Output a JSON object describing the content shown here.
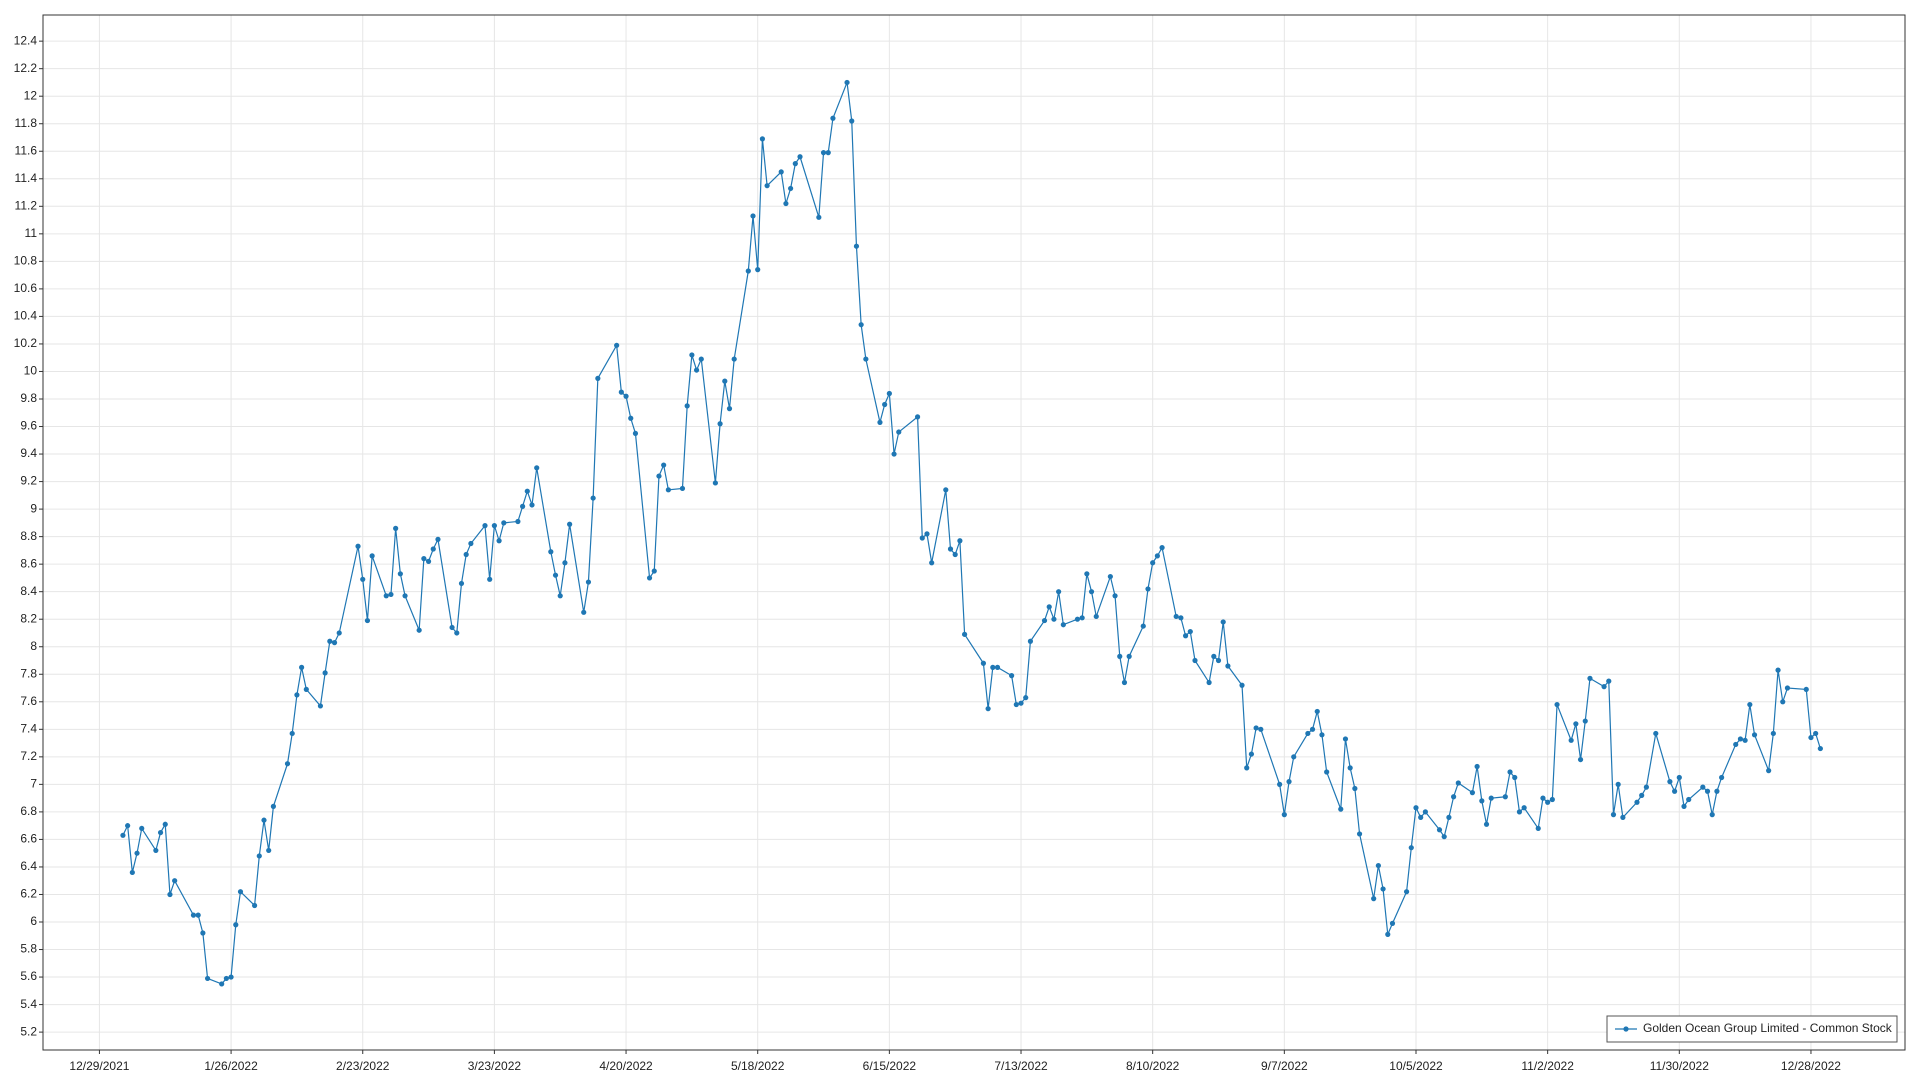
{
  "chart_data": {
    "type": "line",
    "x": [
      "1/3/2022",
      "1/4/2022",
      "1/5/2022",
      "1/6/2022",
      "1/7/2022",
      "1/10/2022",
      "1/11/2022",
      "1/12/2022",
      "1/13/2022",
      "1/14/2022",
      "1/18/2022",
      "1/19/2022",
      "1/20/2022",
      "1/21/2022",
      "1/24/2022",
      "1/25/2022",
      "1/26/2022",
      "1/27/2022",
      "1/28/2022",
      "1/31/2022",
      "2/1/2022",
      "2/2/2022",
      "2/3/2022",
      "2/4/2022",
      "2/7/2022",
      "2/8/2022",
      "2/9/2022",
      "2/10/2022",
      "2/11/2022",
      "2/14/2022",
      "2/15/2022",
      "2/16/2022",
      "2/17/2022",
      "2/18/2022",
      "2/22/2022",
      "2/23/2022",
      "2/24/2022",
      "2/25/2022",
      "2/28/2022",
      "3/1/2022",
      "3/2/2022",
      "3/3/2022",
      "3/4/2022",
      "3/7/2022",
      "3/8/2022",
      "3/9/2022",
      "3/10/2022",
      "3/11/2022",
      "3/14/2022",
      "3/15/2022",
      "3/16/2022",
      "3/17/2022",
      "3/18/2022",
      "3/21/2022",
      "3/22/2022",
      "3/23/2022",
      "3/24/2022",
      "3/25/2022",
      "3/28/2022",
      "3/29/2022",
      "3/30/2022",
      "3/31/2022",
      "4/1/2022",
      "4/4/2022",
      "4/5/2022",
      "4/6/2022",
      "4/7/2022",
      "4/8/2022",
      "4/11/2022",
      "4/12/2022",
      "4/13/2022",
      "4/14/2022",
      "4/18/2022",
      "4/19/2022",
      "4/20/2022",
      "4/21/2022",
      "4/22/2022",
      "4/25/2022",
      "4/26/2022",
      "4/27/2022",
      "4/28/2022",
      "4/29/2022",
      "5/2/2022",
      "5/3/2022",
      "5/4/2022",
      "5/5/2022",
      "5/6/2022",
      "5/9/2022",
      "5/10/2022",
      "5/11/2022",
      "5/12/2022",
      "5/13/2022",
      "5/16/2022",
      "5/17/2022",
      "5/18/2022",
      "5/19/2022",
      "5/20/2022",
      "5/23/2022",
      "5/24/2022",
      "5/25/2022",
      "5/26/2022",
      "5/27/2022",
      "5/31/2022",
      "6/1/2022",
      "6/2/2022",
      "6/3/2022",
      "6/6/2022",
      "6/7/2022",
      "6/8/2022",
      "6/9/2022",
      "6/10/2022",
      "6/13/2022",
      "6/14/2022",
      "6/15/2022",
      "6/16/2022",
      "6/17/2022",
      "6/21/2022",
      "6/22/2022",
      "6/23/2022",
      "6/24/2022",
      "6/27/2022",
      "6/28/2022",
      "6/29/2022",
      "6/30/2022",
      "7/1/2022",
      "7/5/2022",
      "7/6/2022",
      "7/7/2022",
      "7/8/2022",
      "7/11/2022",
      "7/12/2022",
      "7/13/2022",
      "7/14/2022",
      "7/15/2022",
      "7/18/2022",
      "7/19/2022",
      "7/20/2022",
      "7/21/2022",
      "7/22/2022",
      "7/25/2022",
      "7/26/2022",
      "7/27/2022",
      "7/28/2022",
      "7/29/2022",
      "8/1/2022",
      "8/2/2022",
      "8/3/2022",
      "8/4/2022",
      "8/5/2022",
      "8/8/2022",
      "8/9/2022",
      "8/10/2022",
      "8/11/2022",
      "8/12/2022",
      "8/15/2022",
      "8/16/2022",
      "8/17/2022",
      "8/18/2022",
      "8/19/2022",
      "8/22/2022",
      "8/23/2022",
      "8/24/2022",
      "8/25/2022",
      "8/26/2022",
      "8/29/2022",
      "8/30/2022",
      "8/31/2022",
      "9/1/2022",
      "9/2/2022",
      "9/6/2022",
      "9/7/2022",
      "9/8/2022",
      "9/9/2022",
      "9/12/2022",
      "9/13/2022",
      "9/14/2022",
      "9/15/2022",
      "9/16/2022",
      "9/19/2022",
      "9/20/2022",
      "9/21/2022",
      "9/22/2022",
      "9/23/2022",
      "9/26/2022",
      "9/27/2022",
      "9/28/2022",
      "9/29/2022",
      "9/30/2022",
      "10/3/2022",
      "10/4/2022",
      "10/5/2022",
      "10/6/2022",
      "10/7/2022",
      "10/10/2022",
      "10/11/2022",
      "10/12/2022",
      "10/13/2022",
      "10/14/2022",
      "10/17/2022",
      "10/18/2022",
      "10/19/2022",
      "10/20/2022",
      "10/21/2022",
      "10/24/2022",
      "10/25/2022",
      "10/26/2022",
      "10/27/2022",
      "10/28/2022",
      "10/31/2022",
      "11/1/2022",
      "11/2/2022",
      "11/3/2022",
      "11/4/2022",
      "11/7/2022",
      "11/8/2022",
      "11/9/2022",
      "11/10/2022",
      "11/11/2022",
      "11/14/2022",
      "11/15/2022",
      "11/16/2022",
      "11/17/2022",
      "11/18/2022",
      "11/21/2022",
      "11/22/2022",
      "11/23/2022",
      "11/25/2022",
      "11/28/2022",
      "11/29/2022",
      "11/30/2022",
      "12/1/2022",
      "12/2/2022",
      "12/5/2022",
      "12/6/2022",
      "12/7/2022",
      "12/8/2022",
      "12/9/2022",
      "12/12/2022",
      "12/13/2022",
      "12/14/2022",
      "12/15/2022",
      "12/16/2022",
      "12/19/2022",
      "12/20/2022",
      "12/21/2022",
      "12/22/2022",
      "12/23/2022",
      "12/27/2022",
      "12/28/2022",
      "12/29/2022",
      "12/30/2022"
    ],
    "series": [
      {
        "name": "Golden Ocean Group Limited - Common Stock",
        "color": "#1f77b4",
        "values": [
          6.63,
          6.7,
          6.36,
          6.5,
          6.68,
          6.52,
          6.65,
          6.71,
          6.2,
          6.3,
          6.05,
          6.05,
          5.92,
          5.59,
          5.55,
          5.59,
          5.6,
          5.98,
          6.22,
          6.12,
          6.48,
          6.74,
          6.52,
          6.84,
          7.15,
          7.37,
          7.65,
          7.85,
          7.69,
          7.57,
          7.81,
          8.04,
          8.03,
          8.1,
          8.73,
          8.49,
          8.19,
          8.66,
          8.37,
          8.38,
          8.86,
          8.53,
          8.37,
          8.12,
          8.64,
          8.62,
          8.71,
          8.78,
          8.14,
          8.1,
          8.46,
          8.67,
          8.75,
          8.88,
          8.49,
          8.88,
          8.77,
          8.9,
          8.91,
          9.02,
          9.13,
          9.03,
          9.3,
          8.69,
          8.52,
          8.37,
          8.61,
          8.89,
          8.25,
          8.47,
          9.08,
          9.95,
          10.19,
          9.85,
          9.82,
          9.66,
          9.55,
          8.5,
          8.55,
          9.24,
          9.32,
          9.14,
          9.15,
          9.75,
          10.12,
          10.01,
          10.09,
          9.19,
          9.62,
          9.93,
          9.73,
          10.09,
          10.73,
          11.13,
          10.74,
          11.69,
          11.35,
          11.45,
          11.22,
          11.33,
          11.51,
          11.56,
          11.12,
          11.59,
          11.59,
          11.84,
          12.1,
          11.82,
          10.91,
          10.34,
          10.09,
          9.63,
          9.76,
          9.84,
          9.4,
          9.56,
          9.67,
          8.79,
          8.82,
          8.61,
          9.14,
          8.71,
          8.67,
          8.77,
          8.09,
          7.88,
          7.55,
          7.85,
          7.85,
          7.79,
          7.58,
          7.59,
          7.63,
          8.04,
          8.19,
          8.29,
          8.2,
          8.4,
          8.16,
          8.2,
          8.21,
          8.53,
          8.4,
          8.22,
          8.51,
          8.37,
          7.93,
          7.74,
          7.93,
          8.15,
          8.42,
          8.61,
          8.66,
          8.72,
          8.22,
          8.21,
          8.08,
          8.11,
          7.9,
          7.74,
          7.93,
          7.9,
          8.18,
          7.86,
          7.72,
          7.12,
          7.22,
          7.41,
          7.4,
          7.0,
          6.78,
          7.02,
          7.2,
          7.37,
          7.4,
          7.53,
          7.36,
          7.09,
          6.82,
          7.33,
          7.12,
          6.97,
          6.64,
          6.17,
          6.41,
          6.24,
          5.91,
          5.99,
          6.22,
          6.54,
          6.83,
          6.76,
          6.8,
          6.67,
          6.62,
          6.76,
          6.91,
          7.01,
          6.94,
          7.13,
          6.88,
          6.71,
          6.9,
          6.91,
          7.09,
          7.05,
          6.8,
          6.83,
          6.68,
          6.9,
          6.87,
          6.89,
          7.58,
          7.32,
          7.44,
          7.18,
          7.46,
          7.77,
          7.71,
          7.75,
          6.78,
          7.0,
          6.76,
          6.87,
          6.92,
          6.98,
          7.37,
          7.02,
          6.95,
          7.05,
          6.84,
          6.89,
          6.98,
          6.95,
          6.78,
          6.95,
          7.05,
          7.29,
          7.33,
          7.32,
          7.58,
          7.36,
          7.1,
          7.37,
          7.83,
          7.6,
          7.7,
          7.69,
          7.34,
          7.37,
          7.26
        ]
      }
    ],
    "xlim": [
      "12/17/2021",
      "1/17/2023"
    ],
    "xticks": [
      "12/29/2021",
      "1/26/2022",
      "2/23/2022",
      "3/23/2022",
      "4/20/2022",
      "5/18/2022",
      "6/15/2022",
      "7/13/2022",
      "8/10/2022",
      "9/7/2022",
      "10/5/2022",
      "11/2/2022",
      "11/30/2022",
      "12/28/2022"
    ],
    "ylim": [
      5.07,
      12.59
    ],
    "yticks": [
      5.2,
      5.4,
      5.6,
      5.8,
      6,
      6.2,
      6.4,
      6.6,
      6.8,
      7,
      7.2,
      7.4,
      7.6,
      7.8,
      8,
      8.2,
      8.4,
      8.6,
      8.8,
      9,
      9.2,
      9.4,
      9.6,
      9.8,
      10,
      10.2,
      10.4,
      10.6,
      10.8,
      11,
      11.2,
      11.4,
      11.6,
      11.8,
      12,
      12.2,
      12.4
    ],
    "grid": true,
    "markers": true,
    "legend": "lower right"
  }
}
